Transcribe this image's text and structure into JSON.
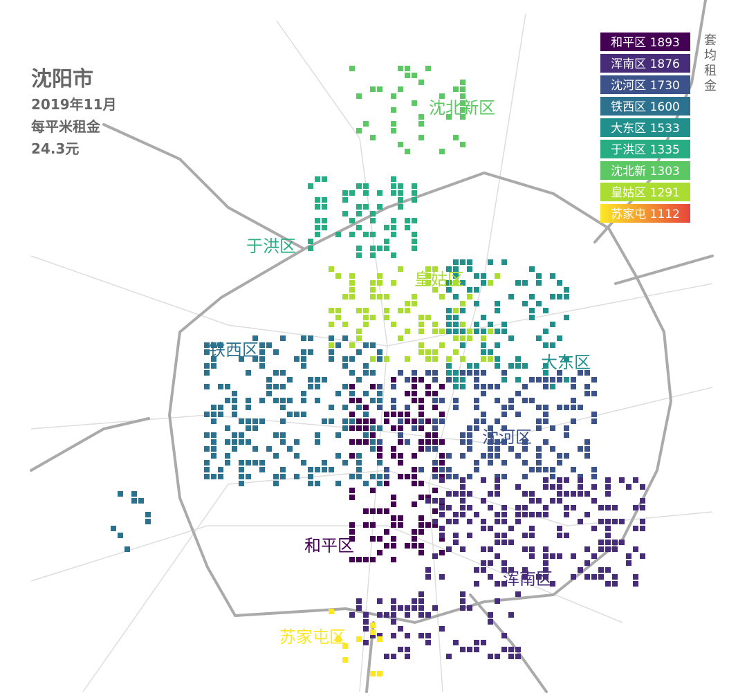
{
  "title": "沈阳市",
  "subtitle": [
    "2019年11月",
    "每平米租金",
    "24.3元"
  ],
  "legend": {
    "title": "套均租金",
    "items": [
      {
        "name": "和平区",
        "value": 1893,
        "color": "#440154"
      },
      {
        "name": "浑南区",
        "value": 1876,
        "color": "#472c7a"
      },
      {
        "name": "沈河区",
        "value": 1730,
        "color": "#3b528b"
      },
      {
        "name": "铁西区",
        "value": 1600,
        "color": "#2c728e"
      },
      {
        "name": "大东区",
        "value": 1533,
        "color": "#21908d"
      },
      {
        "name": "于洪区",
        "value": 1335,
        "color": "#27ad81"
      },
      {
        "name": "沈北新",
        "value": 1303,
        "color": "#5cc863"
      },
      {
        "name": "皇姑区",
        "value": 1291,
        "color": "#aadc32"
      },
      {
        "name": "苏家屯",
        "value": 1112,
        "color": "#fde725"
      }
    ]
  },
  "districts": [
    {
      "label": "沈北新区",
      "color": "#5cc863"
    },
    {
      "label": "于洪区",
      "color": "#27ad81"
    },
    {
      "label": "皇姑区",
      "color": "#aadc32"
    },
    {
      "label": "铁西区",
      "color": "#2c728e"
    },
    {
      "label": "大东区",
      "color": "#21908d"
    },
    {
      "label": "沈河区",
      "color": "#3b528b"
    },
    {
      "label": "和平区",
      "color": "#440154"
    },
    {
      "label": "浑南区",
      "color": "#472c7a"
    },
    {
      "label": "苏家屯区",
      "color": "#fde725"
    }
  ]
}
